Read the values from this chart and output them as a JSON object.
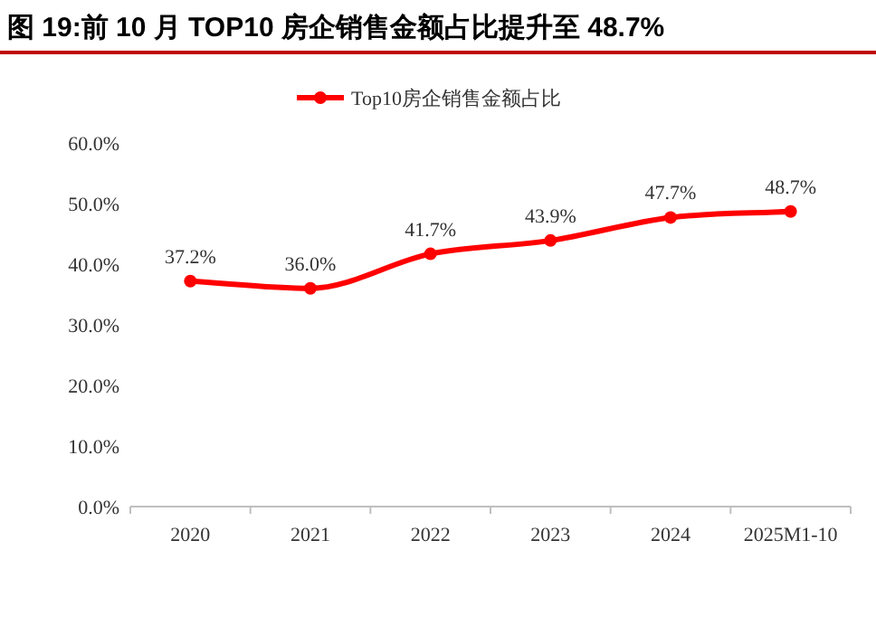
{
  "chart_data": {
    "type": "line",
    "title": "图 19:前 10 月 TOP10 房企销售金额占比提升至 48.7%",
    "categories": [
      "2020",
      "2021",
      "2022",
      "2023",
      "2024",
      "2025M1-10"
    ],
    "series": [
      {
        "name": "Top10房企销售金额占比",
        "color": "#ff0000",
        "values": [
          37.2,
          36.0,
          41.7,
          43.9,
          47.7,
          48.7
        ],
        "value_labels": [
          "37.2%",
          "36.0%",
          "41.7%",
          "43.9%",
          "47.7%",
          "48.7%"
        ]
      }
    ],
    "ylim": [
      0,
      60
    ],
    "yticks": [
      {
        "value": 0,
        "label": "0.0%"
      },
      {
        "value": 10,
        "label": "10.0%"
      },
      {
        "value": 20,
        "label": "20.0%"
      },
      {
        "value": 30,
        "label": "30.0%"
      },
      {
        "value": 40,
        "label": "40.0%"
      },
      {
        "value": 50,
        "label": "50.0%"
      },
      {
        "value": 60,
        "label": "60.0%"
      }
    ],
    "legend": "top",
    "marker": "circle",
    "line_style": "solid"
  }
}
